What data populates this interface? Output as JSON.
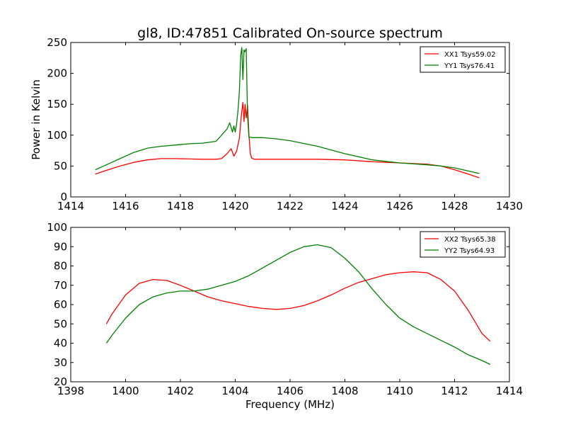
{
  "figure": {
    "title": "gl8, ID:47851 Calibrated On-source spectrum"
  },
  "chart_data": [
    {
      "type": "line",
      "title": "gl8, ID:47851 Calibrated On-source spectrum",
      "xlabel": "",
      "ylabel": "Power in Kelvin",
      "xlim": [
        1414,
        1430
      ],
      "ylim": [
        0,
        250
      ],
      "xticks": [
        1414,
        1416,
        1418,
        1420,
        1422,
        1424,
        1426,
        1428,
        1430
      ],
      "yticks": [
        0,
        50,
        100,
        150,
        200,
        250
      ],
      "grid": false,
      "legend_position": "top-right",
      "series": [
        {
          "name": "XX1 Tsys59.02",
          "color": "#ff0000",
          "x": [
            1414.9,
            1415.3,
            1415.8,
            1416.3,
            1416.8,
            1417.3,
            1417.8,
            1418.3,
            1418.8,
            1419.3,
            1419.5,
            1419.7,
            1419.85,
            1419.95,
            1420.05,
            1420.15,
            1420.22,
            1420.28,
            1420.32,
            1420.36,
            1420.4,
            1420.45,
            1420.5,
            1420.55,
            1420.6,
            1420.7,
            1421.0,
            1422.0,
            1423.0,
            1424.0,
            1425.0,
            1426.0,
            1427.0,
            1427.5,
            1428.0,
            1428.5,
            1428.9
          ],
          "y": [
            37,
            43,
            50,
            56,
            60,
            62,
            62,
            61.5,
            61,
            61,
            62,
            70,
            78,
            66,
            74,
            95,
            130,
            153,
            122,
            150,
            128,
            148,
            100,
            70,
            63,
            61,
            61,
            61,
            61,
            60,
            57,
            55,
            53,
            50,
            44,
            37,
            31
          ]
        },
        {
          "name": "YY1 Tsys76.41",
          "color": "#008000",
          "x": [
            1414.9,
            1415.3,
            1415.8,
            1416.3,
            1416.8,
            1417.3,
            1417.8,
            1418.3,
            1418.8,
            1419.3,
            1419.5,
            1419.6,
            1419.7,
            1419.8,
            1419.9,
            1419.95,
            1420.0,
            1420.05,
            1420.1,
            1420.15,
            1420.2,
            1420.24,
            1420.28,
            1420.32,
            1420.35,
            1420.4,
            1420.45,
            1420.5,
            1420.55,
            1420.6,
            1420.7,
            1421.0,
            1421.5,
            1422.0,
            1423.0,
            1424.0,
            1425.0,
            1426.0,
            1427.0,
            1427.5,
            1428.0,
            1428.5,
            1428.9
          ],
          "y": [
            44,
            52,
            62,
            72,
            79,
            82,
            84,
            86,
            87,
            90,
            100,
            105,
            110,
            120,
            105,
            115,
            105,
            118,
            140,
            170,
            230,
            242,
            190,
            238,
            235,
            240,
            130,
            96,
            97,
            96,
            96,
            96,
            94,
            91,
            82,
            70,
            60,
            55,
            52,
            50,
            47,
            42,
            38
          ]
        }
      ]
    },
    {
      "type": "line",
      "title": "",
      "xlabel": "Frequency (MHz)",
      "ylabel": "",
      "xlim": [
        1398,
        1414
      ],
      "ylim": [
        20,
        100
      ],
      "xticks": [
        1398,
        1400,
        1402,
        1404,
        1406,
        1408,
        1410,
        1412,
        1414
      ],
      "yticks": [
        20,
        30,
        40,
        50,
        60,
        70,
        80,
        90,
        100
      ],
      "grid": false,
      "legend_position": "top-right",
      "series": [
        {
          "name": "XX2 Tsys65.38",
          "color": "#ff0000",
          "x": [
            1399.3,
            1399.5,
            1400.0,
            1400.5,
            1401.0,
            1401.5,
            1402.0,
            1402.5,
            1403.0,
            1403.5,
            1404.0,
            1404.5,
            1405.0,
            1405.5,
            1406.0,
            1406.5,
            1407.0,
            1407.5,
            1408.0,
            1408.5,
            1409.0,
            1409.5,
            1410.0,
            1410.5,
            1411.0,
            1411.5,
            1412.0,
            1412.5,
            1413.0,
            1413.3
          ],
          "y": [
            50,
            55,
            65,
            71,
            73,
            72.5,
            70,
            67,
            64,
            62,
            60.5,
            59,
            58,
            57.5,
            58,
            59.5,
            62,
            65,
            68.5,
            71.5,
            73.5,
            75.5,
            76.5,
            77,
            76.5,
            73,
            67,
            57,
            45,
            41
          ]
        },
        {
          "name": "YY2 Tsys64.93",
          "color": "#008000",
          "x": [
            1399.3,
            1399.5,
            1400.0,
            1400.5,
            1401.0,
            1401.5,
            1402.0,
            1402.5,
            1403.0,
            1403.5,
            1404.0,
            1404.5,
            1405.0,
            1405.5,
            1406.0,
            1406.5,
            1407.0,
            1407.5,
            1408.0,
            1408.5,
            1409.0,
            1409.5,
            1410.0,
            1410.5,
            1411.0,
            1411.5,
            1412.0,
            1412.5,
            1413.0,
            1413.3
          ],
          "y": [
            40,
            44,
            53,
            60,
            64,
            66,
            67,
            67,
            68,
            70,
            72,
            75,
            79,
            83,
            87,
            90,
            91,
            89.5,
            84,
            77,
            68,
            60,
            53,
            48.5,
            45,
            41.5,
            38,
            34,
            31,
            29
          ]
        }
      ]
    }
  ]
}
